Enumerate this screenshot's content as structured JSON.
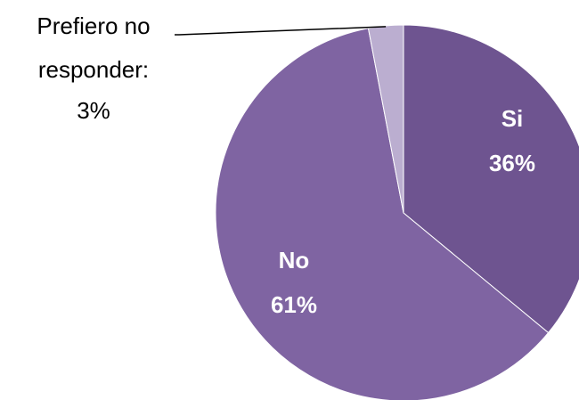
{
  "chart_data": {
    "type": "pie",
    "categories": [
      "Si",
      "No",
      "Prefiero no responder"
    ],
    "values": [
      36,
      61,
      3
    ],
    "labels": [
      {
        "lines": [
          "Si",
          "36%"
        ],
        "position": "inside",
        "bold": true,
        "color": "#ffffff"
      },
      {
        "lines": [
          "No",
          "61%"
        ],
        "position": "inside",
        "bold": true,
        "color": "#ffffff"
      },
      {
        "lines": [
          "Prefiero no",
          "responder:",
          "3%"
        ],
        "position": "outside-left",
        "bold": false,
        "color": "#000000"
      }
    ],
    "colors": [
      "#6E5490",
      "#7F64A2",
      "#BBAED0"
    ],
    "start_angle": "12 o'clock",
    "direction": "clockwise",
    "legend": "none"
  }
}
